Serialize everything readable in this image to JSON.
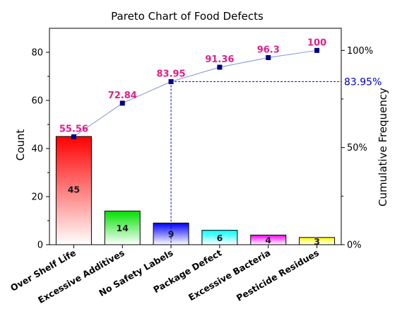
{
  "chart_data": {
    "type": "bar",
    "title": "Pareto Chart of Food Defects",
    "ylabel": "Count",
    "y2label": "Cumulative Frequency",
    "ylim": [
      0,
      90
    ],
    "yticks": [
      0,
      20,
      40,
      60,
      80
    ],
    "y2lim": [
      0,
      111.4
    ],
    "y2ticks": [
      0,
      50,
      100
    ],
    "y2tick_labels": [
      "0%",
      "50%",
      "100%"
    ],
    "categories": [
      "Over Shelf Life",
      "Excessive Additives",
      "No Safety Labels",
      "Package Defect",
      "Excessive Bacteria",
      "Pesticide Residues"
    ],
    "series": [
      {
        "type": "bar",
        "values": [
          45,
          14,
          9,
          6,
          4,
          3
        ],
        "colors": [
          "#ff0000",
          "#00e000",
          "#0000ff",
          "#00ffff",
          "#ff00ff",
          "#ffff00"
        ]
      },
      {
        "type": "line",
        "values": [
          55.56,
          72.84,
          83.95,
          91.36,
          96.3,
          100
        ],
        "labels": [
          "55.56",
          "72.84",
          "83.95",
          "91.36",
          "96.3",
          "100"
        ]
      }
    ],
    "reference": {
      "category_index": 2,
      "value": 83.95,
      "label": "83.95%"
    },
    "colors": {
      "line": "#8090d8",
      "marker": "#000080",
      "cumulative_label": "#e0208a",
      "reference": "#0000cc"
    }
  }
}
